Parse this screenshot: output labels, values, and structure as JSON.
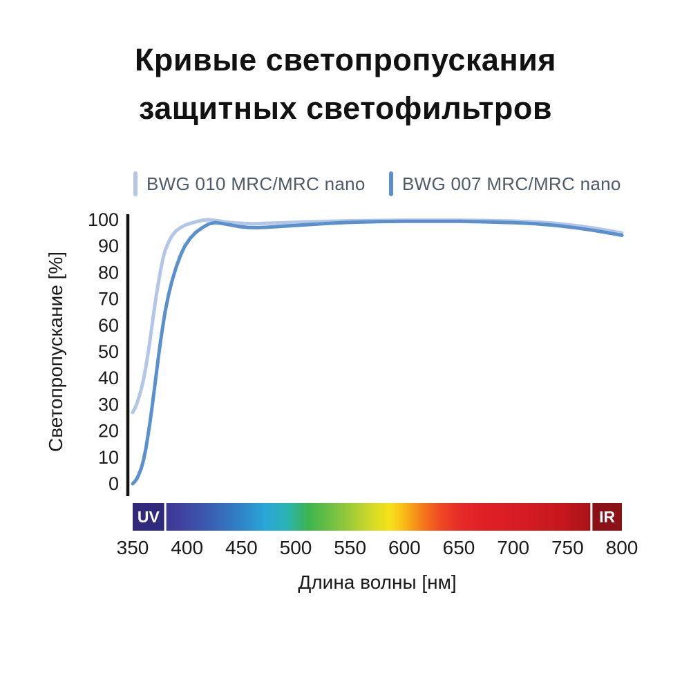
{
  "title": {
    "line1": "Кривые светопропускания",
    "line2": "защитных светофильтров"
  },
  "legend": [
    {
      "label": "BWG 010 MRC/MRC nano",
      "color": "#b3c6e8"
    },
    {
      "label": "BWG 007 MRC/MRC nano",
      "color": "#5b90ce"
    }
  ],
  "chart_data": {
    "type": "line",
    "title": "Кривые светопропускания защитных светофильтров",
    "xlabel": "Длина волны [нм]",
    "ylabel": "Светопропускание [%]",
    "xlim": [
      350,
      800
    ],
    "ylim": [
      0,
      100
    ],
    "x_ticks": [
      350,
      400,
      450,
      500,
      550,
      600,
      650,
      700,
      750,
      800
    ],
    "y_ticks": [
      0,
      10,
      20,
      30,
      40,
      50,
      60,
      70,
      80,
      90,
      100
    ],
    "grid": false,
    "legend_position": "top",
    "axis_color": "#111111",
    "tick_label_color": "#1a1a1a",
    "series": [
      {
        "name": "BWG 010 MRC/MRC nano",
        "color": "#b3c6e8",
        "points": [
          [
            350,
            27
          ],
          [
            352,
            28.5
          ],
          [
            354,
            30.5
          ],
          [
            356,
            33
          ],
          [
            358,
            36
          ],
          [
            360,
            39.5
          ],
          [
            362,
            44
          ],
          [
            364,
            49
          ],
          [
            366,
            54.5
          ],
          [
            368,
            60.5
          ],
          [
            370,
            66.5
          ],
          [
            372,
            72
          ],
          [
            374,
            77
          ],
          [
            376,
            81.5
          ],
          [
            378,
            85.5
          ],
          [
            380,
            88.5
          ],
          [
            383,
            91.5
          ],
          [
            386,
            93.8
          ],
          [
            390,
            95.8
          ],
          [
            394,
            97
          ],
          [
            398,
            97.9
          ],
          [
            403,
            98.6
          ],
          [
            408,
            99.2
          ],
          [
            414,
            99.8
          ],
          [
            420,
            100
          ],
          [
            428,
            99.6
          ],
          [
            436,
            99.1
          ],
          [
            444,
            98.8
          ],
          [
            452,
            98.6
          ],
          [
            462,
            98.5
          ],
          [
            475,
            98.7
          ],
          [
            490,
            98.9
          ],
          [
            510,
            99.2
          ],
          [
            530,
            99.4
          ],
          [
            550,
            99.6
          ],
          [
            575,
            99.7
          ],
          [
            600,
            99.8
          ],
          [
            625,
            99.8
          ],
          [
            650,
            99.8
          ],
          [
            675,
            99.7
          ],
          [
            700,
            99.5
          ],
          [
            720,
            99.2
          ],
          [
            740,
            98.6
          ],
          [
            760,
            97.7
          ],
          [
            775,
            96.8
          ],
          [
            788,
            95.9
          ],
          [
            800,
            95
          ]
        ]
      },
      {
        "name": "BWG 007 MRC/MRC nano",
        "color": "#5b90ce",
        "points": [
          [
            350,
            0
          ],
          [
            352,
            0.8
          ],
          [
            354,
            2
          ],
          [
            356,
            3.8
          ],
          [
            358,
            6
          ],
          [
            360,
            9
          ],
          [
            362,
            13
          ],
          [
            364,
            18
          ],
          [
            366,
            23.5
          ],
          [
            368,
            29.5
          ],
          [
            370,
            36
          ],
          [
            372,
            42.5
          ],
          [
            374,
            49
          ],
          [
            376,
            55
          ],
          [
            378,
            60.5
          ],
          [
            380,
            65.5
          ],
          [
            383,
            71.5
          ],
          [
            386,
            76.5
          ],
          [
            390,
            82
          ],
          [
            394,
            86.5
          ],
          [
            398,
            90
          ],
          [
            403,
            93
          ],
          [
            408,
            95.2
          ],
          [
            414,
            97
          ],
          [
            420,
            98.4
          ],
          [
            426,
            98.9
          ],
          [
            432,
            98.6
          ],
          [
            440,
            98
          ],
          [
            448,
            97.4
          ],
          [
            456,
            97.1
          ],
          [
            465,
            97
          ],
          [
            475,
            97.2
          ],
          [
            490,
            97.6
          ],
          [
            510,
            98.1
          ],
          [
            530,
            98.6
          ],
          [
            550,
            99
          ],
          [
            575,
            99.3
          ],
          [
            600,
            99.4
          ],
          [
            625,
            99.4
          ],
          [
            650,
            99.4
          ],
          [
            675,
            99.2
          ],
          [
            700,
            98.9
          ],
          [
            720,
            98.5
          ],
          [
            740,
            97.8
          ],
          [
            760,
            96.8
          ],
          [
            775,
            95.9
          ],
          [
            788,
            95
          ],
          [
            800,
            94.1
          ]
        ]
      }
    ],
    "spectrum_bar": {
      "uv_label": "UV",
      "ir_label": "IR",
      "uv_color": "#2f2a7c",
      "ir_color": "#8c1116",
      "uv_end_nm": 379,
      "ir_start_nm": 771,
      "gradient_stops": [
        [
          0.0,
          "#352a80"
        ],
        [
          0.09,
          "#403e9c"
        ],
        [
          0.155,
          "#3a5cb0"
        ],
        [
          0.22,
          "#2f82c6"
        ],
        [
          0.27,
          "#2aa6d8"
        ],
        [
          0.315,
          "#2ab3b4"
        ],
        [
          0.36,
          "#3cb54d"
        ],
        [
          0.42,
          "#7fc341"
        ],
        [
          0.48,
          "#c9d72a"
        ],
        [
          0.525,
          "#f5e31a"
        ],
        [
          0.555,
          "#f8bb16"
        ],
        [
          0.59,
          "#f57e1b"
        ],
        [
          0.63,
          "#ef4723"
        ],
        [
          0.67,
          "#e62a28"
        ],
        [
          0.72,
          "#de2026"
        ],
        [
          0.8,
          "#d41c22"
        ],
        [
          0.88,
          "#c4161c"
        ],
        [
          0.94,
          "#a51317"
        ],
        [
          1.0,
          "#8c1014"
        ]
      ]
    }
  }
}
